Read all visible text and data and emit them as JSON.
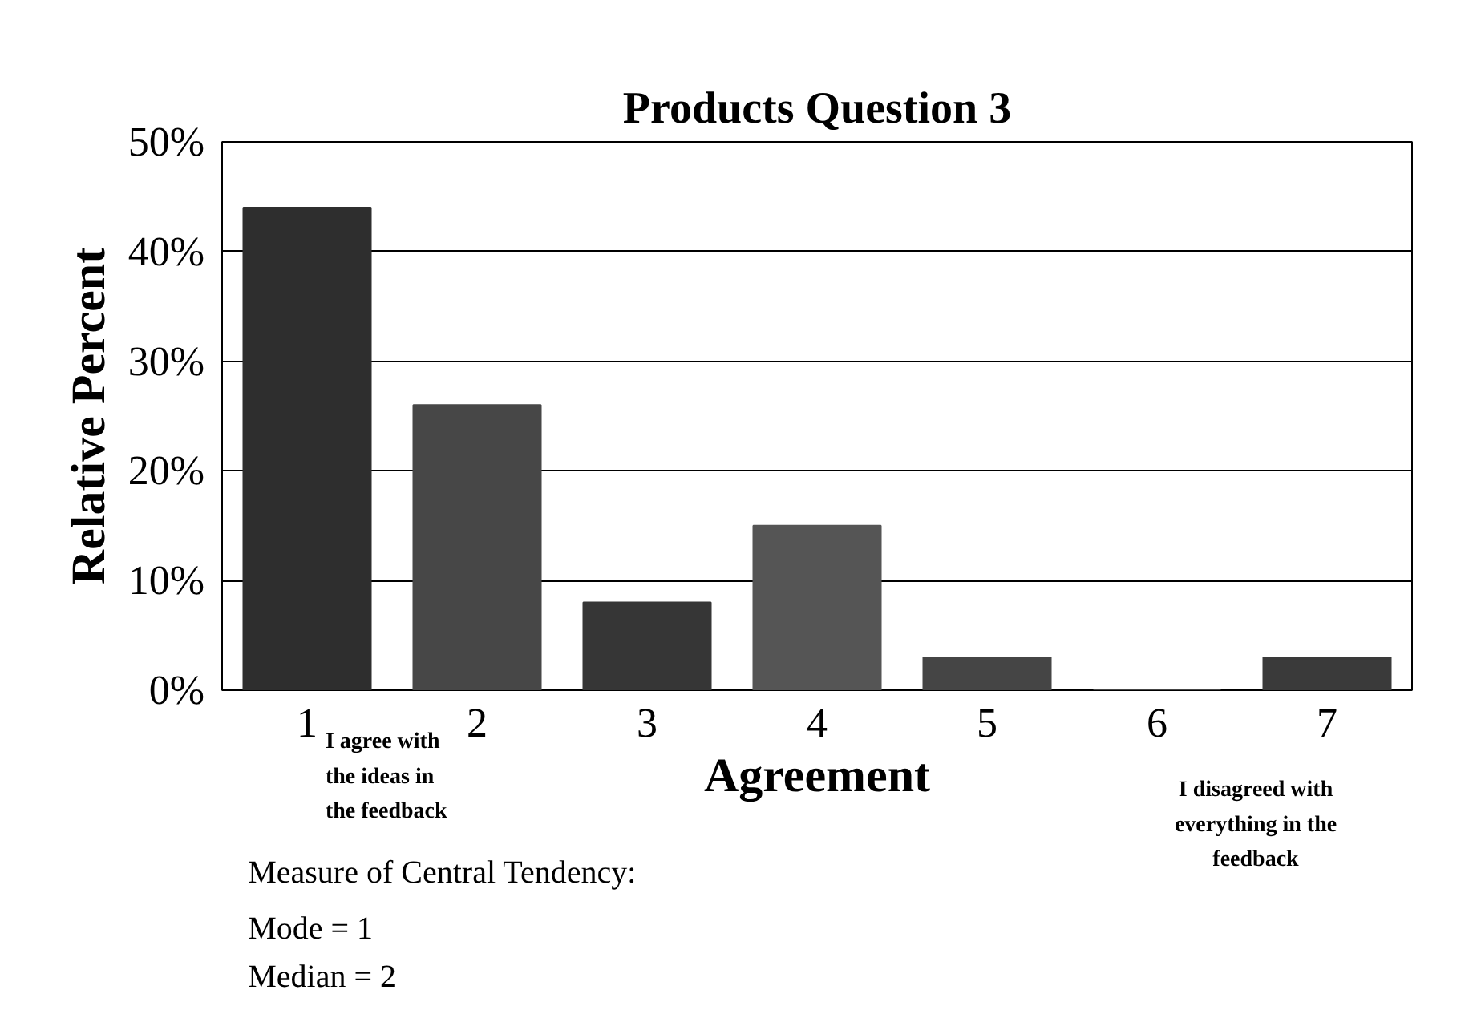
{
  "chart_data": {
    "type": "bar",
    "title": "Products Question 3",
    "xlabel": "Agreement",
    "ylabel": "Relative Percent",
    "categories": [
      "1",
      "2",
      "3",
      "4",
      "5",
      "6",
      "7"
    ],
    "values": [
      44,
      26,
      8,
      15,
      3,
      0,
      3
    ],
    "colors": [
      "#2e2e2e",
      "#474747",
      "#363636",
      "#555555",
      "#454545",
      "#454545",
      "#3a3a3a"
    ],
    "ylim": [
      0,
      50
    ],
    "yticks": [
      {
        "value": 0,
        "label": "0%"
      },
      {
        "value": 10,
        "label": "10%"
      },
      {
        "value": 20,
        "label": "20%"
      },
      {
        "value": 30,
        "label": "30%"
      },
      {
        "value": 40,
        "label": "40%"
      },
      {
        "value": 50,
        "label": "50%"
      }
    ],
    "grid": "y",
    "annotations": [
      "I agree with\nthe ideas in\nthe feedback",
      "I disagreed with\neverything in the\nfeedback",
      "Measure of Central Tendency:",
      "Mode = 1",
      "Median = 2"
    ]
  }
}
